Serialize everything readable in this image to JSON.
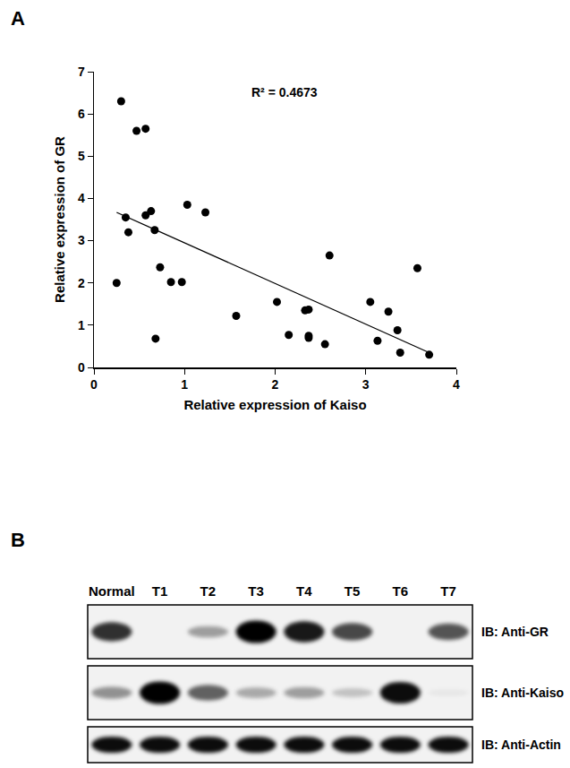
{
  "chart_data": {
    "type": "scatter",
    "panel_label": "A",
    "x_label": "Relative expression of Kaiso",
    "y_label": "Relative expression of GR",
    "annotation": "R² = 0.4673",
    "x": [
      0.25,
      0.3,
      0.35,
      0.38,
      0.47,
      0.57,
      0.57,
      0.63,
      0.67,
      0.68,
      0.73,
      0.85,
      0.97,
      1.03,
      1.23,
      1.57,
      2.02,
      2.15,
      2.33,
      2.37,
      2.37,
      2.37,
      2.55,
      2.6,
      3.05,
      3.13,
      3.25,
      3.35,
      3.38,
      3.57,
      3.7
    ],
    "y": [
      2.0,
      6.3,
      3.55,
      3.2,
      5.6,
      5.65,
      3.6,
      3.7,
      3.25,
      0.68,
      2.37,
      2.02,
      2.02,
      3.85,
      3.67,
      1.22,
      1.55,
      0.77,
      1.35,
      1.37,
      0.75,
      0.7,
      0.55,
      2.65,
      1.55,
      0.63,
      1.32,
      0.88,
      0.35,
      2.35,
      0.3
    ],
    "trendline": {
      "x": [
        0.25,
        3.7
      ],
      "y": [
        3.67,
        0.35
      ]
    },
    "color": "#000000",
    "marker": "circle",
    "xlim": [
      0,
      4
    ],
    "xticks": [
      0,
      1,
      2,
      3,
      4
    ],
    "ylim": [
      0,
      7
    ],
    "yticks": [
      0,
      1,
      2,
      3,
      4,
      5,
      6,
      7
    ],
    "grid": false
  },
  "blot": {
    "panel_label": "B",
    "lanes": [
      "Normal",
      "T1",
      "T2",
      "T3",
      "T4",
      "T5",
      "T6",
      "T7"
    ],
    "rows": [
      {
        "label": "IB: Anti-GR",
        "intensities": [
          0.8,
          0,
          0.35,
          1,
          0.9,
          0.7,
          0,
          0.65
        ]
      },
      {
        "label": "IB: Anti-Kaiso",
        "intensities": [
          0.4,
          1,
          0.6,
          0.3,
          0.35,
          0.2,
          0.95,
          0.05
        ]
      },
      {
        "label": "IB: Anti-Actin",
        "intensities": [
          0.95,
          0.95,
          0.95,
          0.95,
          0.95,
          0.95,
          0.95,
          0.95
        ]
      }
    ]
  }
}
